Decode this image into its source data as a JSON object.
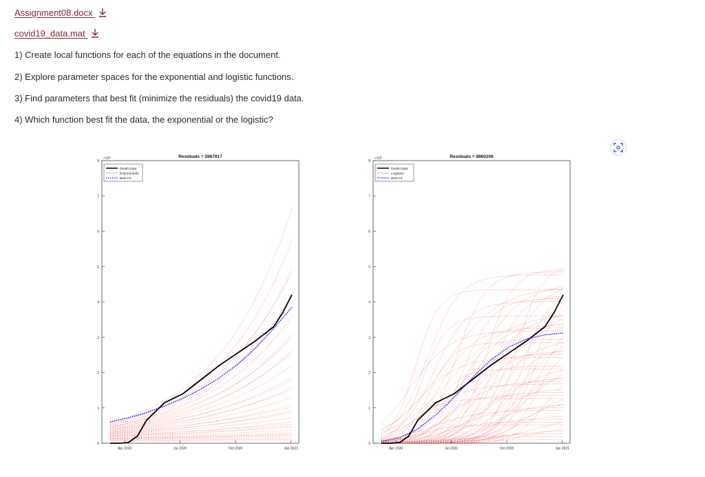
{
  "attachments": [
    {
      "name": "Assignment08.docx",
      "icon": "download-icon"
    },
    {
      "name": "covid19_data.mat",
      "icon": "download-icon"
    }
  ],
  "instructions": [
    "1) Create local functions for each of the equations in the document.",
    "2) Explore parameter spaces for the exponential and logistic functions.",
    "3) Find parameters that best fit (minimize the residuals) the covid19 data.",
    "4) Which function best fit the data, the exponential or the logistic?"
  ],
  "colors": {
    "link": "#8a2438",
    "fan": "#ff0000",
    "data": "#000000",
    "fit": "#0000ff"
  },
  "scan_button": {
    "icon": "scan-image-icon"
  },
  "chart_data": [
    {
      "type": "line",
      "title": "Residuals = 5967817",
      "y_multiplier": "×10⁵",
      "ylim": [
        0,
        8
      ],
      "yticks": [
        "0",
        "1",
        "2",
        "3",
        "4",
        "5",
        "6",
        "7",
        "8"
      ],
      "xticks": [
        "Apr 2020",
        "Jul 2020",
        "Oct 2020",
        "Jan 2021"
      ],
      "legend": [
        "Death Data",
        "Exponentials",
        "Best Fit"
      ],
      "legend_position": "top-left",
      "series": [
        {
          "name": "Death Data",
          "x": [
            0,
            0.05,
            0.1,
            0.15,
            0.2,
            0.3,
            0.4,
            0.5,
            0.6,
            0.7,
            0.8,
            0.9,
            0.95,
            1.0
          ],
          "y": [
            0,
            0,
            0.02,
            0.2,
            0.65,
            1.15,
            1.4,
            1.8,
            2.2,
            2.55,
            2.9,
            3.3,
            3.7,
            4.2
          ]
        },
        {
          "name": "Best Fit",
          "x": [
            0,
            0.1,
            0.2,
            0.3,
            0.4,
            0.5,
            0.6,
            0.7,
            0.8,
            0.9,
            1.0
          ],
          "y": [
            0.6,
            0.72,
            0.87,
            1.05,
            1.27,
            1.53,
            1.85,
            2.23,
            2.69,
            3.25,
            3.85
          ]
        }
      ]
    },
    {
      "type": "line",
      "title": "Residuals = 8860206",
      "y_multiplier": "×10⁵",
      "ylim": [
        0,
        8
      ],
      "yticks": [
        "0",
        "1",
        "2",
        "3",
        "4",
        "5",
        "6",
        "7",
        "8"
      ],
      "xticks": [
        "Apr 2020",
        "Jul 2020",
        "Oct 2020",
        "Jan 2021"
      ],
      "legend": [
        "Death Data",
        "Logistics",
        "Best Fit"
      ],
      "legend_position": "top-left",
      "series": [
        {
          "name": "Death Data",
          "x": [
            0,
            0.05,
            0.1,
            0.15,
            0.2,
            0.3,
            0.4,
            0.5,
            0.6,
            0.7,
            0.8,
            0.9,
            0.95,
            1.0
          ],
          "y": [
            0,
            0,
            0.02,
            0.2,
            0.65,
            1.15,
            1.4,
            1.8,
            2.2,
            2.55,
            2.9,
            3.3,
            3.7,
            4.2
          ]
        },
        {
          "name": "Best Fit",
          "x": [
            0,
            0.1,
            0.2,
            0.3,
            0.4,
            0.5,
            0.6,
            0.7,
            0.8,
            0.9,
            1.0
          ],
          "y": [
            0.05,
            0.15,
            0.4,
            0.8,
            1.3,
            1.85,
            2.35,
            2.72,
            2.95,
            3.07,
            3.12
          ]
        }
      ]
    }
  ]
}
